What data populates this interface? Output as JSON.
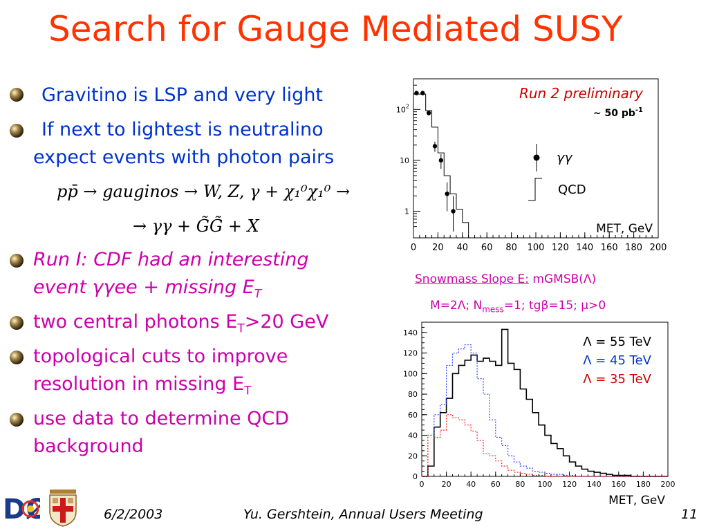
{
  "slide": {
    "title": "Search for Gauge Mediated SUSY",
    "bullets": [
      {
        "lines": [
          "Gravitino is LSP and very light"
        ],
        "color": "#0033cc"
      },
      {
        "lines": [
          "If next to lightest is neutralino",
          "expect events with photon pairs"
        ],
        "color": "#0033cc"
      },
      {
        "lines": [
          "Run I: CDF had an interesting",
          "event γγee + missing E"
        ],
        "sub": "T",
        "color": "#cc00aa",
        "italic": true
      },
      {
        "lines": [
          "two central photons E"
        ],
        "sub": "T",
        "suffix": ">20 GeV",
        "color": "#cc00aa"
      },
      {
        "lines": [
          "topological cuts to improve",
          "resolution in missing E"
        ],
        "sub": "T",
        "color": "#cc00aa"
      },
      {
        "lines": [
          "use data to determine QCD",
          "background"
        ],
        "color": "#cc00aa"
      }
    ],
    "formula_line1": "pp̄ → gauginos → W, Z, γ + χ₁⁰χ₁⁰ →",
    "formula_line2": "→ γγ + G̃G̃ + X"
  },
  "chart_data": [
    {
      "type": "bar",
      "title": "Run 2 preliminary",
      "lumi": "~ 50 pb",
      "lumi_sup": "-1",
      "xlabel": "MET, GeV",
      "ylabel": "",
      "x_ticks": [
        0,
        20,
        40,
        60,
        80,
        100,
        120,
        140,
        160,
        180,
        200
      ],
      "y_scale": "log",
      "y_ticks": [
        "1",
        "10",
        "10²"
      ],
      "xlim": [
        0,
        200
      ],
      "ylim": [
        0.3,
        400
      ],
      "legend": [
        "γγ",
        "QCD"
      ],
      "legend_position": "right",
      "points": {
        "name": "γγ",
        "x": [
          2.5,
          7.5,
          12.5,
          17.5,
          22.5,
          27.5,
          32.5
        ],
        "y": [
          210,
          210,
          85,
          19,
          10,
          2.2,
          1.0
        ],
        "yerr_low": [
          15,
          15,
          9,
          4.3,
          3.2,
          1.2,
          0.6
        ],
        "yerr_high": [
          15,
          15,
          9,
          4.3,
          3.2,
          1.5,
          1.0
        ]
      },
      "qcd_histogram": {
        "name": "QCD",
        "bin_edges": [
          0,
          5,
          10,
          15,
          20,
          25,
          30,
          35,
          40,
          45
        ],
        "values": [
          200,
          200,
          95,
          45,
          14,
          5,
          2.2,
          1.1,
          0.6
        ]
      }
    },
    {
      "type": "line",
      "title": "Snowmass Slope E:",
      "title_suffix": "mGMSB(Λ)",
      "subtitle": "M=2Λ; N",
      "subtitle_sub": "mess",
      "subtitle_suffix": "=1; tgβ=15; μ>0",
      "xlabel": "MET, GeV",
      "ylabel": "",
      "x_ticks": [
        0,
        20,
        40,
        60,
        80,
        100,
        120,
        140,
        160,
        180,
        200
      ],
      "y_ticks": [
        0,
        20,
        40,
        60,
        80,
        100,
        120,
        140
      ],
      "xlim": [
        0,
        200
      ],
      "ylim": [
        0,
        150
      ],
      "legend_position": "top-right",
      "bin_width": 5,
      "series": [
        {
          "name": "Λ = 55 TeV",
          "color": "#000000",
          "style": "solid",
          "values": [
            0,
            10,
            48,
            62,
            76,
            100,
            108,
            113,
            118,
            112,
            115,
            112,
            108,
            143,
            110,
            104,
            85,
            75,
            62,
            50,
            40,
            32,
            27,
            20,
            14,
            10,
            7,
            5,
            4,
            3,
            2,
            1,
            1,
            1,
            0,
            0,
            0,
            0,
            0,
            0
          ]
        },
        {
          "name": "Λ = 45 TeV",
          "color": "#3344ff",
          "style": "dotted",
          "values": [
            0,
            40,
            60,
            70,
            108,
            120,
            124,
            128,
            120,
            95,
            80,
            55,
            38,
            30,
            20,
            14,
            10,
            8,
            5,
            4,
            3,
            2,
            2,
            1,
            1,
            0,
            0,
            0,
            0,
            0,
            0,
            0,
            0,
            0,
            0,
            0,
            0,
            0,
            0,
            0
          ]
        },
        {
          "name": "Λ = 35 TeV",
          "color": "#ff2222",
          "style": "dotted",
          "values": [
            0,
            40,
            38,
            45,
            60,
            57,
            55,
            50,
            44,
            35,
            22,
            20,
            15,
            10,
            6,
            4,
            3,
            2,
            1,
            1,
            0,
            0,
            0,
            0,
            0,
            0,
            0,
            0,
            0,
            0,
            0,
            0,
            0,
            0,
            0,
            0,
            0,
            0,
            0,
            0
          ]
        }
      ]
    }
  ],
  "footer": {
    "date": "6/2/2003",
    "author": "Yu. Gershtein, Annual Users Meeting",
    "page": "11"
  },
  "logos": {
    "left": "DØ",
    "right": "crest"
  },
  "colors": {
    "title": "#ff3300",
    "blue_text": "#0033cc",
    "magenta_text": "#cc00aa",
    "annotation_red": "#cc0000"
  }
}
